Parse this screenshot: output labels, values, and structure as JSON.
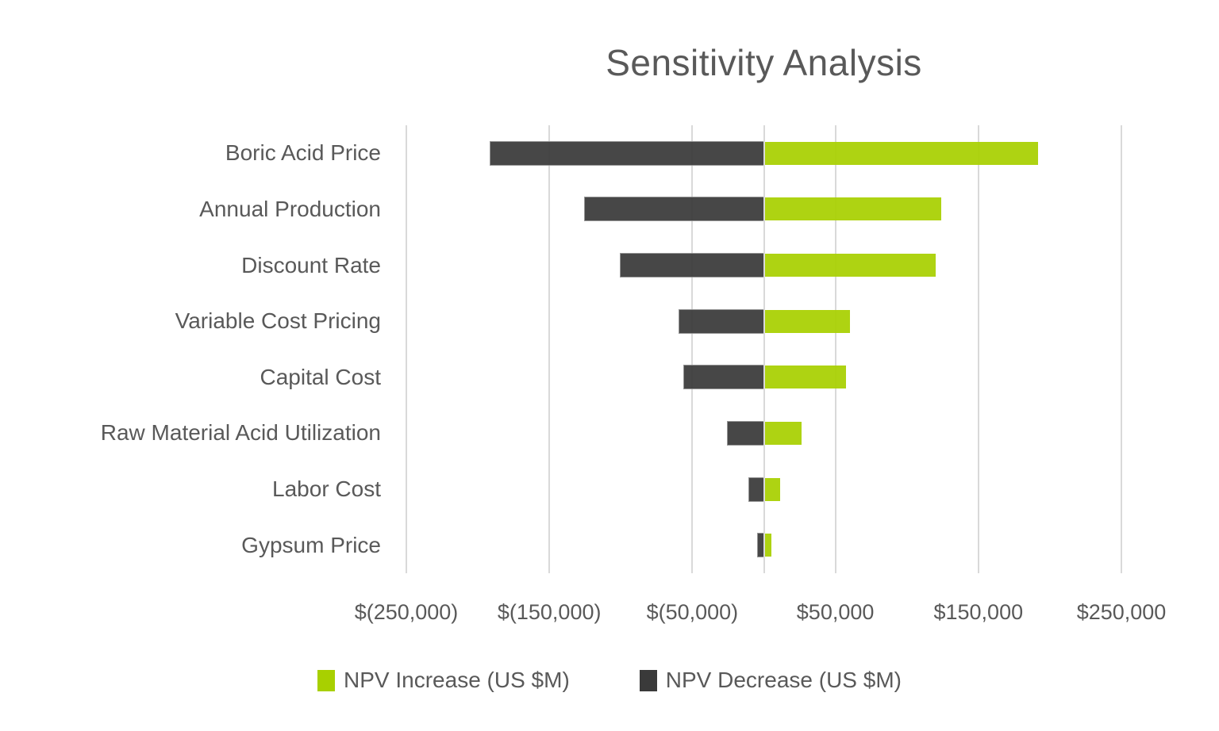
{
  "title": "Sensitivity Analysis",
  "colors": {
    "increase": "#A8D000",
    "decrease": "#3A3A3A",
    "gridline": "#D9D9D9",
    "text": "#595959",
    "background": "#FFFFFF"
  },
  "chart_data": {
    "type": "bar",
    "subtype": "tornado-horizontal",
    "title": "Sensitivity Analysis",
    "categories": [
      "Boric Acid Price",
      "Annual Production",
      "Discount Rate",
      "Variable Cost Pricing",
      "Capital Cost",
      "Raw Material Acid Utilization",
      "Labor Cost",
      "Gypsum Price"
    ],
    "series": [
      {
        "name": "NPV Increase (US $M)",
        "color": "#A8D000",
        "values": [
          192000,
          124000,
          120000,
          60000,
          57500,
          26500,
          11500,
          5500
        ]
      },
      {
        "name": "NPV Decrease (US $M)",
        "color": "#3A3A3A",
        "values": [
          -191000,
          -125000,
          -100000,
          -59000,
          -56000,
          -25500,
          -10500,
          -4200
        ]
      }
    ],
    "xlabel": "",
    "ylabel": "",
    "xlim": [
      -250000,
      250000
    ],
    "x_tick_values": [
      -250000,
      -150000,
      -50000,
      50000,
      150000,
      250000
    ],
    "x_tick_labels": [
      "$(250,000)",
      "$(150,000)",
      "$(50,000)",
      "$50,000",
      "$150,000",
      "$250,000"
    ],
    "grid": true,
    "zero_axis_line": true,
    "legend_position": "bottom"
  },
  "legend": {
    "items": [
      {
        "label": "NPV Increase (US $M)",
        "color": "#A8D000"
      },
      {
        "label": "NPV Decrease (US $M)",
        "color": "#3A3A3A"
      }
    ]
  }
}
